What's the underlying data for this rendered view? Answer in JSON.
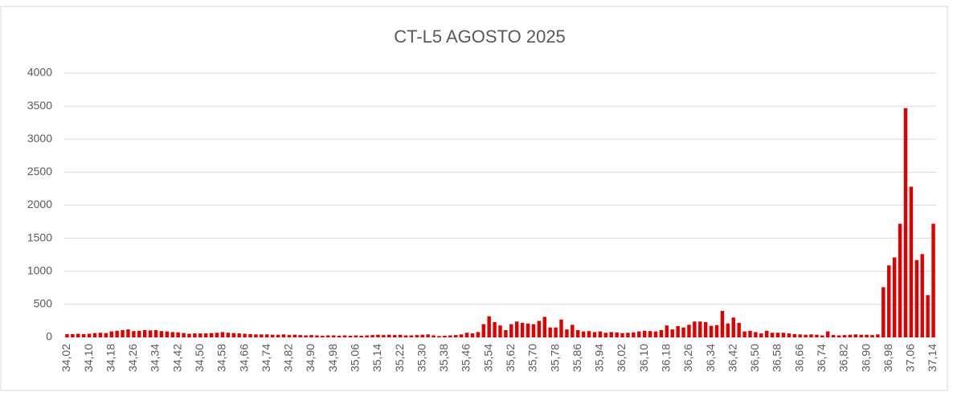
{
  "chart_data": {
    "type": "bar",
    "title": "CT-L5 AGOSTO 2025",
    "categories": [
      "34,02",
      null,
      null,
      null,
      "34,10",
      null,
      null,
      null,
      "34,18",
      null,
      null,
      null,
      "34,26",
      null,
      null,
      null,
      "34,34",
      null,
      null,
      null,
      "34,42",
      null,
      null,
      null,
      "34,50",
      null,
      null,
      null,
      "34,58",
      null,
      null,
      null,
      "34,66",
      null,
      null,
      null,
      "34,74",
      null,
      null,
      null,
      "34,82",
      null,
      null,
      null,
      "34,90",
      null,
      null,
      null,
      "34,98",
      null,
      null,
      null,
      "35,06",
      null,
      null,
      null,
      "35,14",
      null,
      null,
      null,
      "35,22",
      null,
      null,
      null,
      "35,30",
      null,
      null,
      null,
      "35,38",
      null,
      null,
      null,
      "35,46",
      null,
      null,
      null,
      "35,54",
      null,
      null,
      null,
      "35,62",
      null,
      null,
      null,
      "35,70",
      null,
      null,
      null,
      "35,78",
      null,
      null,
      null,
      "35,86",
      null,
      null,
      null,
      "35,94",
      null,
      null,
      null,
      "36,02",
      null,
      null,
      null,
      "36,10",
      null,
      null,
      null,
      "36,18",
      null,
      null,
      null,
      "36,26",
      null,
      null,
      null,
      "36,34",
      null,
      null,
      null,
      "36,42",
      null,
      null,
      null,
      "36,50",
      null,
      null,
      null,
      "36,58",
      null,
      null,
      null,
      "36,66",
      null,
      null,
      null,
      "36,74",
      null,
      null,
      null,
      "36,82",
      null,
      null,
      null,
      "36,90",
      null,
      null,
      null,
      "36,98",
      null,
      null,
      null,
      "37,06",
      null,
      null,
      null,
      "37,14"
    ],
    "values": [
      50,
      50,
      55,
      50,
      55,
      65,
      70,
      65,
      90,
      100,
      110,
      120,
      95,
      100,
      110,
      105,
      110,
      95,
      90,
      80,
      75,
      65,
      55,
      60,
      60,
      60,
      65,
      70,
      80,
      70,
      65,
      60,
      55,
      50,
      45,
      45,
      45,
      40,
      40,
      45,
      35,
      40,
      35,
      30,
      35,
      30,
      25,
      30,
      30,
      25,
      30,
      25,
      30,
      25,
      30,
      35,
      40,
      35,
      40,
      35,
      40,
      30,
      30,
      35,
      40,
      45,
      30,
      20,
      25,
      30,
      35,
      45,
      70,
      60,
      80,
      200,
      320,
      230,
      180,
      110,
      200,
      240,
      220,
      210,
      200,
      250,
      310,
      150,
      150,
      270,
      120,
      190,
      110,
      90,
      95,
      80,
      90,
      70,
      80,
      75,
      65,
      70,
      75,
      90,
      100,
      95,
      90,
      110,
      180,
      120,
      170,
      150,
      190,
      240,
      240,
      230,
      175,
      185,
      400,
      210,
      300,
      220,
      90,
      100,
      80,
      60,
      100,
      70,
      70,
      70,
      60,
      50,
      45,
      40,
      45,
      40,
      30,
      90,
      35,
      30,
      35,
      40,
      45,
      40,
      40,
      35,
      45,
      760,
      1090,
      1210,
      1720,
      3470,
      2280,
      1170,
      1260,
      640,
      1720
    ],
    "color": "#e00000",
    "ylim": [
      0,
      4000
    ],
    "yticks": [
      0,
      500,
      1000,
      1500,
      2000,
      2500,
      3000,
      3500,
      4000
    ],
    "grid": true
  }
}
